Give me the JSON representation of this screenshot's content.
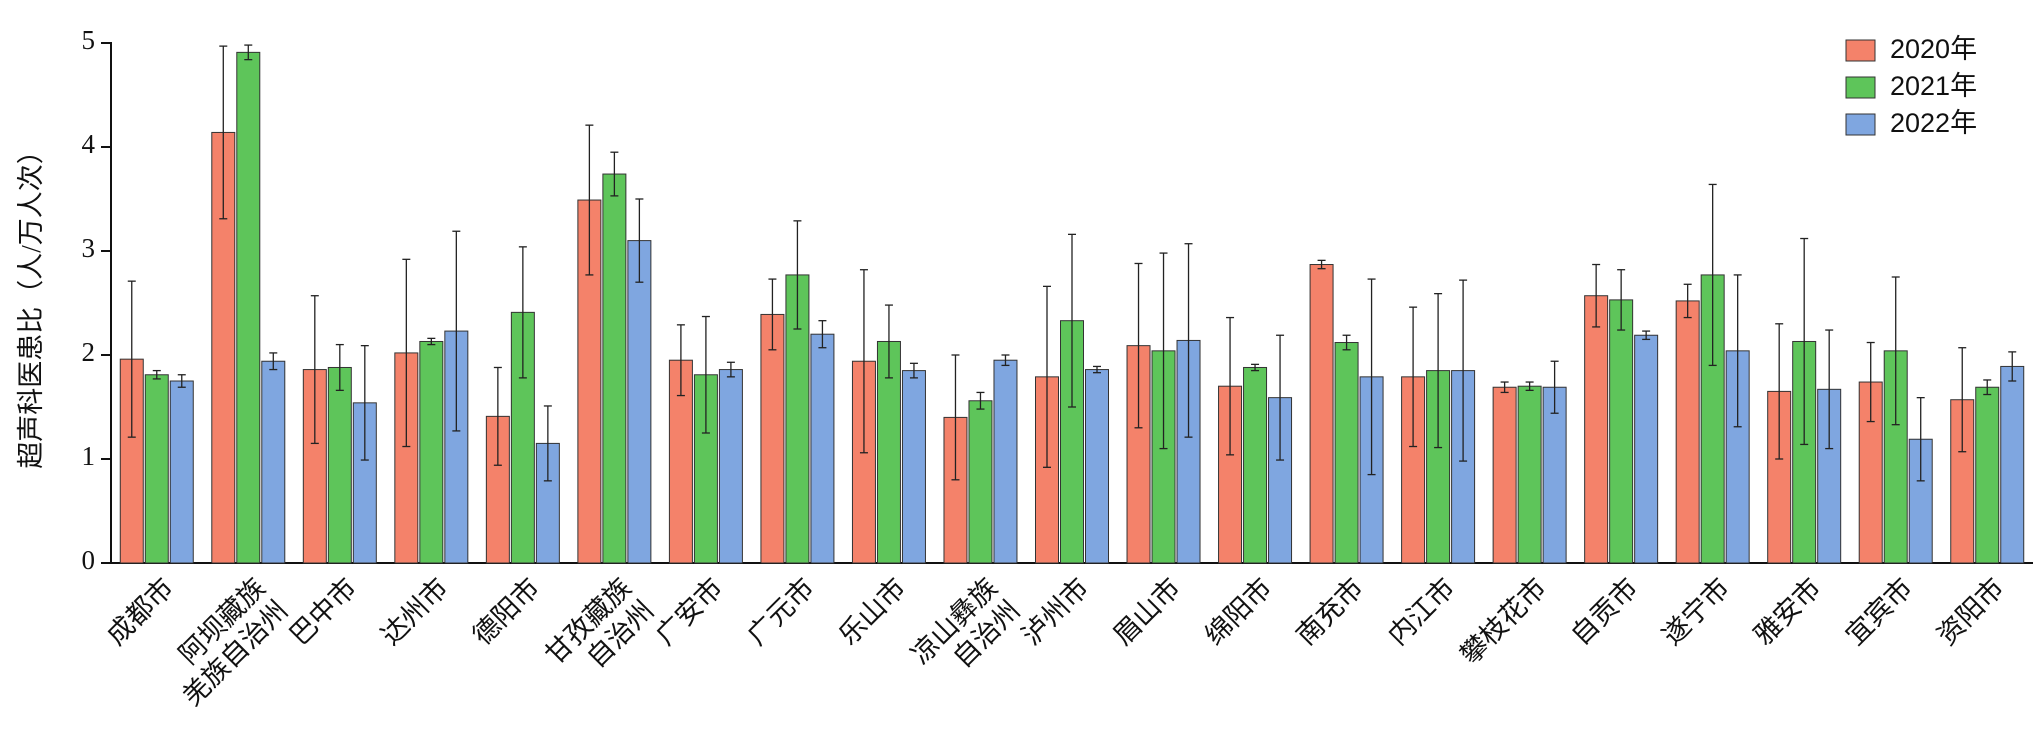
{
  "chart_data": {
    "type": "bar",
    "y_label": "超声科医患比（人/万人次）",
    "categories": [
      [
        "成都市"
      ],
      [
        "阿坝藏族",
        "羌族自治州"
      ],
      [
        "巴中市"
      ],
      [
        "达州市"
      ],
      [
        "德阳市"
      ],
      [
        "甘孜藏族",
        "自治州"
      ],
      [
        "广安市"
      ],
      [
        "广元市"
      ],
      [
        "乐山市"
      ],
      [
        "凉山彝族",
        "自治州"
      ],
      [
        "泸州市"
      ],
      [
        "眉山市"
      ],
      [
        "绵阳市"
      ],
      [
        "南充市"
      ],
      [
        "内江市"
      ],
      [
        "攀枝花市"
      ],
      [
        "自贡市"
      ],
      [
        "遂宁市"
      ],
      [
        "雅安市"
      ],
      [
        "宜宾市"
      ],
      [
        "资阳市"
      ]
    ],
    "series": [
      {
        "name": "2020年",
        "color": "#f4826a",
        "values": [
          1.96,
          4.14,
          1.86,
          2.02,
          1.41,
          3.49,
          1.95,
          2.39,
          1.94,
          1.4,
          1.79,
          2.09,
          1.7,
          2.87,
          1.79,
          1.69,
          2.57,
          2.52,
          1.65,
          1.74,
          1.57
        ],
        "errors": [
          0.75,
          0.83,
          0.71,
          0.9,
          0.47,
          0.72,
          0.34,
          0.34,
          0.88,
          0.6,
          0.87,
          0.79,
          0.66,
          0.04,
          0.67,
          0.05,
          0.3,
          0.16,
          0.65,
          0.38,
          0.5
        ]
      },
      {
        "name": "2021年",
        "color": "#5ec55a",
        "values": [
          1.81,
          4.91,
          1.88,
          2.13,
          2.41,
          3.74,
          1.81,
          2.77,
          2.13,
          1.56,
          2.33,
          2.04,
          1.88,
          2.12,
          1.85,
          1.7,
          2.53,
          2.77,
          2.13,
          2.04,
          1.69
        ],
        "errors": [
          0.04,
          0.07,
          0.22,
          0.03,
          0.63,
          0.21,
          0.56,
          0.52,
          0.35,
          0.08,
          0.83,
          0.94,
          0.03,
          0.07,
          0.74,
          0.04,
          0.29,
          0.87,
          0.99,
          0.71,
          0.07
        ]
      },
      {
        "name": "2022年",
        "color": "#7fa6e0",
        "values": [
          1.75,
          1.94,
          1.54,
          2.23,
          1.15,
          3.1,
          1.86,
          2.2,
          1.85,
          1.95,
          1.86,
          2.14,
          1.59,
          1.79,
          1.85,
          1.69,
          2.19,
          2.04,
          1.67,
          1.19,
          1.89
        ],
        "errors": [
          0.06,
          0.08,
          0.55,
          0.96,
          0.36,
          0.4,
          0.07,
          0.13,
          0.07,
          0.05,
          0.03,
          0.93,
          0.6,
          0.94,
          0.87,
          0.25,
          0.04,
          0.73,
          0.57,
          0.4,
          0.14
        ]
      }
    ],
    "ylim": [
      0,
      5
    ],
    "yticks": [
      0,
      1,
      2,
      3,
      4,
      5
    ],
    "grid": false,
    "legend": "top-right"
  }
}
